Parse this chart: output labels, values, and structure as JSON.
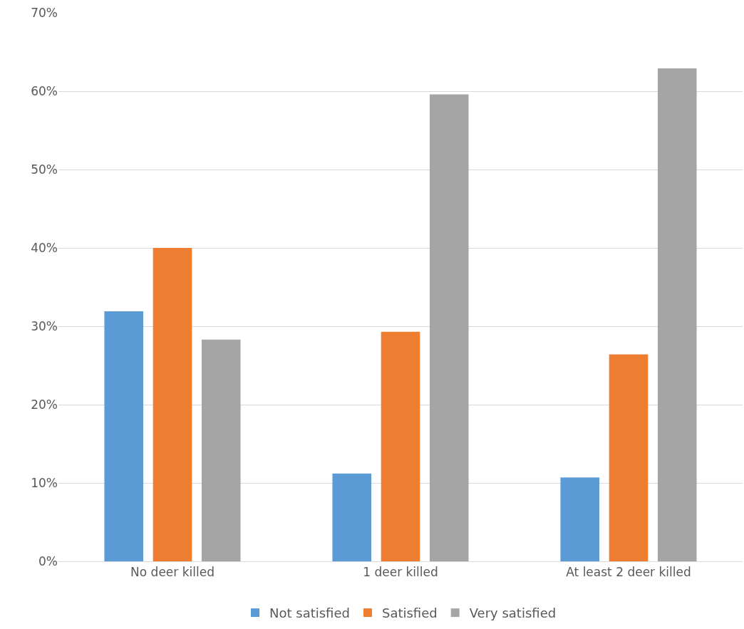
{
  "chart_data": {
    "type": "bar",
    "categories": [
      "No deer killed",
      "1 deer killed",
      "At least 2 deer killed"
    ],
    "series": [
      {
        "name": "Not satisfied",
        "color": "#5b9bd5",
        "values": [
          31.9,
          11.2,
          10.7
        ]
      },
      {
        "name": "Satisfied",
        "color": "#ed7d31",
        "values": [
          40.0,
          29.3,
          26.4
        ]
      },
      {
        "name": "Very satisfied",
        "color": "#a5a5a5",
        "values": [
          28.3,
          59.6,
          62.9
        ]
      }
    ],
    "ylim": [
      0,
      70
    ],
    "yticks": [
      {
        "value": 0,
        "label": "0%"
      },
      {
        "value": 10,
        "label": "10%"
      },
      {
        "value": 20,
        "label": "20%"
      },
      {
        "value": 30,
        "label": "30%"
      },
      {
        "value": 40,
        "label": "40%"
      },
      {
        "value": 50,
        "label": "50%"
      },
      {
        "value": 60,
        "label": "60%"
      },
      {
        "value": 70,
        "label": "70%"
      }
    ],
    "grid": "y",
    "legend": "bottom"
  }
}
